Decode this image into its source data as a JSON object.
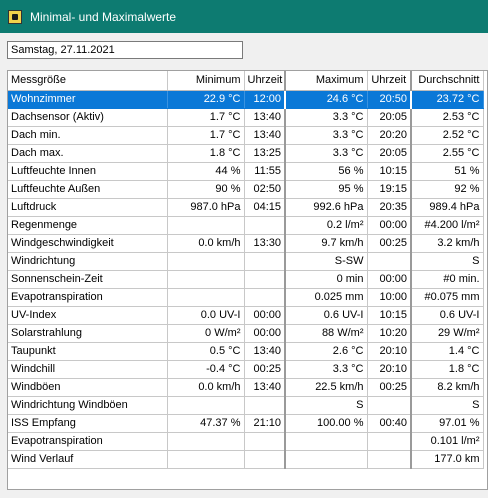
{
  "window": {
    "title": "Minimal- und Maximalwerte",
    "icon": "app-icon"
  },
  "date": {
    "value": "Samstag, 27.11.2021"
  },
  "columns": [
    "Messgröße",
    "Minimum",
    "Uhrzeit",
    "Maximum",
    "Uhrzeit",
    "Durchschnitt"
  ],
  "rows": [
    [
      "Wohnzimmer",
      "22.9 °C",
      "12:00",
      "24.6 °C",
      "20:50",
      "23.72 °C"
    ],
    [
      "Dachsensor (Aktiv)",
      "1.7 °C",
      "13:40",
      "3.3 °C",
      "20:05",
      "2.53 °C"
    ],
    [
      "Dach min.",
      "1.7 °C",
      "13:40",
      "3.3 °C",
      "20:20",
      "2.52 °C"
    ],
    [
      "Dach max.",
      "1.8 °C",
      "13:25",
      "3.3 °C",
      "20:05",
      "2.55 °C"
    ],
    [
      "Luftfeuchte Innen",
      "44 %",
      "11:55",
      "56 %",
      "10:15",
      "51 %"
    ],
    [
      "Luftfeuchte Außen",
      "90 %",
      "02:50",
      "95 %",
      "19:15",
      "92 %"
    ],
    [
      "Luftdruck",
      "987.0 hPa",
      "04:15",
      "992.6 hPa",
      "20:35",
      "989.4 hPa"
    ],
    [
      "Regenmenge",
      "",
      "",
      "0.2 l/m²",
      "00:00",
      "#4.200 l/m²"
    ],
    [
      "Windgeschwindigkeit",
      "0.0 km/h",
      "13:30",
      "9.7 km/h",
      "00:25",
      "3.2 km/h"
    ],
    [
      "Windrichtung",
      "",
      "",
      "S-SW",
      "",
      "S"
    ],
    [
      "Sonnenschein-Zeit",
      "",
      "",
      "0 min",
      "00:00",
      "#0 min."
    ],
    [
      "Evapotranspiration",
      "",
      "",
      "0.025 mm",
      "10:00",
      "#0.075 mm"
    ],
    [
      "UV-Index",
      "0.0 UV-I",
      "00:00",
      "0.6 UV-I",
      "10:15",
      "0.6 UV-I"
    ],
    [
      "Solarstrahlung",
      "0 W/m²",
      "00:00",
      "88 W/m²",
      "10:20",
      "29 W/m²"
    ],
    [
      "Taupunkt",
      "0.5 °C",
      "13:40",
      "2.6 °C",
      "20:10",
      "1.4 °C"
    ],
    [
      "Windchill",
      "-0.4 °C",
      "00:25",
      "3.3 °C",
      "20:10",
      "1.8 °C"
    ],
    [
      "Windböen",
      "0.0 km/h",
      "13:40",
      "22.5 km/h",
      "00:25",
      "8.2 km/h"
    ],
    [
      "Windrichtung Windböen",
      "",
      "",
      "S",
      "",
      "S"
    ],
    [
      "ISS Empfang",
      "47.37 %",
      "21:10",
      "100.00 %",
      "00:40",
      "97.01 %"
    ],
    [
      "Evapotranspiration",
      "",
      "",
      "",
      "",
      "0.101 l/m²"
    ],
    [
      "Wind Verlauf",
      "",
      "",
      "",
      "",
      "177.0 km"
    ]
  ],
  "selected_row": 0,
  "colors": {
    "titlebar": "#0d7b71",
    "selection": "#0a78d7"
  }
}
